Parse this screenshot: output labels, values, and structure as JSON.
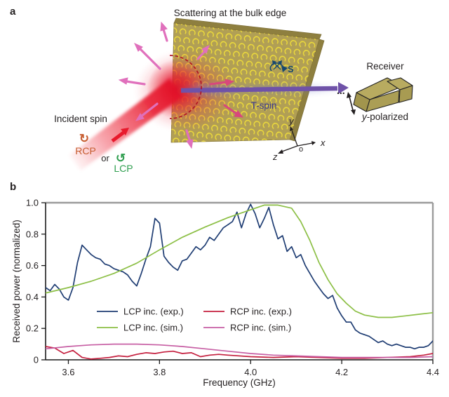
{
  "figure": {
    "panel_a_label": "a",
    "panel_b_label": "b"
  },
  "panel_a": {
    "title": "Scattering at the bulk edge",
    "incident_spin": "Incident spin",
    "rcp": "RCP",
    "or": "or",
    "lcp": "LCP",
    "rcp_icon": "↻",
    "lcp_icon": "↺",
    "spin": "S",
    "t_spin": "T-spin",
    "receiver": "Receiver",
    "dots": "...",
    "polarized_y": "y",
    "polarized_rest": "-polarized",
    "axes": {
      "x": "x",
      "y": "y",
      "z": "z",
      "o": "o"
    },
    "colors": {
      "rcp_text": "#c65b2e",
      "lcp_text": "#2f9e4f",
      "slab": "#b19f55",
      "slab_edge": "#8e7f3f",
      "ring": "#eedc3a",
      "beam_red": "#e8192c",
      "scatter_pink": "#e070bc",
      "deep_pink": "#d8487c",
      "t_spin_arrow": "#6f52a8",
      "spin_label_color": "#17486f",
      "t_spin_text": "#3c3c8e",
      "dashed_arc": "#b01525"
    }
  },
  "chart_data": {
    "type": "line",
    "title": "",
    "xlabel": "Frequency (GHz)",
    "ylabel": "Received power (normalized)",
    "xlim": [
      3.55,
      4.4
    ],
    "ylim": [
      0,
      1.0
    ],
    "xticks": [
      3.6,
      3.8,
      4.0,
      4.2,
      4.4
    ],
    "yticks": [
      0,
      0.2,
      0.4,
      0.6,
      0.8,
      1.0
    ],
    "grid": false,
    "legend_position": "inside-center",
    "series": [
      {
        "name": "LCP inc. (exp.)",
        "color": "#1f3d73",
        "x_start": 3.55,
        "x_step": 0.01,
        "y": [
          0.46,
          0.44,
          0.48,
          0.45,
          0.4,
          0.38,
          0.46,
          0.62,
          0.73,
          0.7,
          0.67,
          0.65,
          0.64,
          0.61,
          0.6,
          0.58,
          0.57,
          0.56,
          0.54,
          0.5,
          0.47,
          0.55,
          0.64,
          0.72,
          0.9,
          0.87,
          0.66,
          0.62,
          0.59,
          0.57,
          0.63,
          0.64,
          0.68,
          0.72,
          0.7,
          0.73,
          0.78,
          0.76,
          0.8,
          0.84,
          0.86,
          0.88,
          0.94,
          0.84,
          0.93,
          0.99,
          0.93,
          0.84,
          0.9,
          0.97,
          0.86,
          0.77,
          0.79,
          0.69,
          0.72,
          0.65,
          0.67,
          0.6,
          0.55,
          0.5,
          0.46,
          0.42,
          0.39,
          0.41,
          0.33,
          0.28,
          0.24,
          0.24,
          0.19,
          0.17,
          0.16,
          0.15,
          0.13,
          0.11,
          0.12,
          0.1,
          0.09,
          0.1,
          0.09,
          0.08,
          0.08,
          0.07,
          0.08,
          0.08,
          0.09,
          0.12
        ]
      },
      {
        "name": "LCP inc. (sim.)",
        "color": "#8cbf45",
        "x": [
          3.55,
          3.6,
          3.65,
          3.7,
          3.75,
          3.8,
          3.85,
          3.9,
          3.95,
          4.0,
          4.03,
          4.06,
          4.09,
          4.11,
          4.13,
          4.15,
          4.17,
          4.19,
          4.21,
          4.23,
          4.25,
          4.28,
          4.31,
          4.34,
          4.37,
          4.4
        ],
        "y": [
          0.425,
          0.46,
          0.5,
          0.55,
          0.615,
          0.7,
          0.78,
          0.845,
          0.905,
          0.955,
          0.985,
          0.985,
          0.965,
          0.88,
          0.76,
          0.62,
          0.51,
          0.42,
          0.36,
          0.31,
          0.285,
          0.27,
          0.27,
          0.28,
          0.29,
          0.3
        ]
      },
      {
        "name": "RCP inc. (exp.)",
        "color": "#c41f3e",
        "x": [
          3.55,
          3.57,
          3.59,
          3.61,
          3.63,
          3.65,
          3.67,
          3.69,
          3.71,
          3.73,
          3.75,
          3.77,
          3.79,
          3.81,
          3.83,
          3.85,
          3.87,
          3.89,
          3.91,
          3.93,
          3.95,
          4.0,
          4.05,
          4.1,
          4.15,
          4.2,
          4.25,
          4.3,
          4.35,
          4.38,
          4.4
        ],
        "y": [
          0.085,
          0.075,
          0.04,
          0.06,
          0.015,
          0.005,
          0.01,
          0.015,
          0.025,
          0.02,
          0.035,
          0.045,
          0.04,
          0.05,
          0.055,
          0.04,
          0.045,
          0.02,
          0.03,
          0.035,
          0.03,
          0.02,
          0.015,
          0.02,
          0.015,
          0.01,
          0.01,
          0.015,
          0.02,
          0.03,
          0.04
        ]
      },
      {
        "name": "RCP inc. (sim.)",
        "color": "#c75fa4",
        "x": [
          3.55,
          3.6,
          3.65,
          3.7,
          3.75,
          3.8,
          3.85,
          3.9,
          3.95,
          4.0,
          4.05,
          4.1,
          4.15,
          4.2,
          4.25,
          4.3,
          4.35,
          4.4
        ],
        "y": [
          0.07,
          0.085,
          0.095,
          0.1,
          0.1,
          0.095,
          0.085,
          0.07,
          0.055,
          0.04,
          0.03,
          0.025,
          0.02,
          0.015,
          0.015,
          0.015,
          0.015,
          0.02
        ]
      }
    ]
  }
}
